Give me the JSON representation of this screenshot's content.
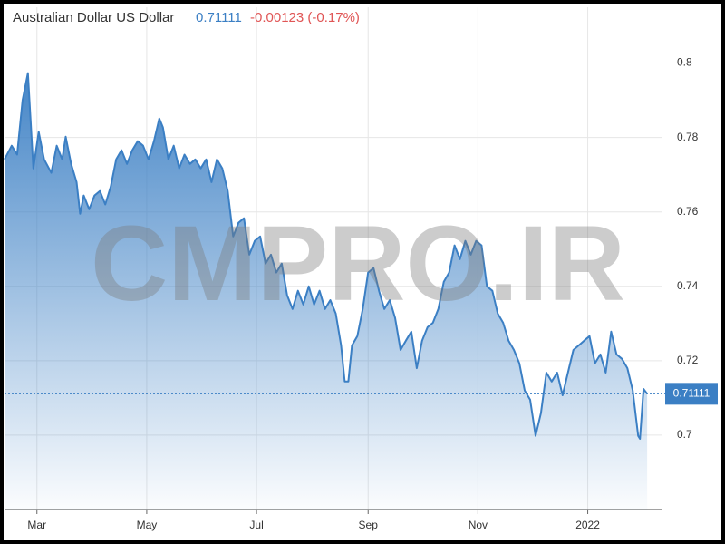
{
  "chart_data": {
    "type": "area",
    "title": "Australian Dollar US Dollar",
    "last_price": 0.71111,
    "change_label": "-0.00123 (-0.17%)",
    "watermark": "CMPRO.IR",
    "color": "#3b7fc4",
    "change_color": "#e05555",
    "grid": true,
    "xlim": [
      -18,
      347
    ],
    "ylim": [
      0.68,
      0.815
    ],
    "xticks": [
      {
        "value": 0,
        "label": "Mar"
      },
      {
        "value": 61,
        "label": "May"
      },
      {
        "value": 122,
        "label": "Jul"
      },
      {
        "value": 184,
        "label": "Sep"
      },
      {
        "value": 245,
        "label": "Nov"
      },
      {
        "value": 306,
        "label": "2022"
      }
    ],
    "yticks": [
      0.7,
      0.72,
      0.74,
      0.76,
      0.78,
      0.8
    ],
    "x": [
      -18,
      -14,
      -11,
      -8,
      -5,
      -2,
      1,
      4,
      8,
      11,
      14,
      16,
      19,
      22,
      24,
      26,
      29,
      32,
      35,
      38,
      41,
      44,
      47,
      50,
      53,
      56,
      59,
      62,
      65,
      68,
      70,
      73,
      76,
      79,
      82,
      85,
      88,
      91,
      94,
      97,
      100,
      103,
      106,
      109,
      112,
      115,
      118,
      121,
      124,
      127,
      130,
      133,
      136,
      139,
      142,
      145,
      148,
      151,
      154,
      157,
      160,
      163,
      166,
      169,
      171,
      173,
      175,
      178,
      181,
      184,
      187,
      190,
      193,
      196,
      199,
      202,
      205,
      208,
      211,
      214,
      217,
      220,
      223,
      226,
      229,
      232,
      235,
      238,
      241,
      244,
      247,
      250,
      253,
      256,
      259,
      262,
      265,
      268,
      271,
      274,
      277,
      280,
      283,
      286,
      289,
      292,
      295,
      298,
      301,
      304,
      307,
      310,
      313,
      316,
      319,
      322,
      325,
      328,
      331,
      334,
      335,
      337,
      339
    ],
    "values": [
      0.7741,
      0.7778,
      0.7754,
      0.79,
      0.7973,
      0.7717,
      0.7815,
      0.7741,
      0.7705,
      0.7778,
      0.7741,
      0.7802,
      0.7729,
      0.768,
      0.7595,
      0.7644,
      0.7607,
      0.7644,
      0.7656,
      0.762,
      0.7668,
      0.7741,
      0.7766,
      0.7729,
      0.7766,
      0.779,
      0.7778,
      0.7741,
      0.779,
      0.7851,
      0.7827,
      0.7741,
      0.7778,
      0.7717,
      0.7754,
      0.7729,
      0.7741,
      0.7717,
      0.7741,
      0.768,
      0.7741,
      0.7717,
      0.7656,
      0.7534,
      0.7571,
      0.7583,
      0.7485,
      0.7522,
      0.7534,
      0.7461,
      0.7485,
      0.7437,
      0.7461,
      0.7376,
      0.7339,
      0.7388,
      0.7351,
      0.74,
      0.7351,
      0.7388,
      0.7339,
      0.7363,
      0.7327,
      0.7241,
      0.7144,
      0.7144,
      0.7241,
      0.7266,
      0.7339,
      0.7437,
      0.7449,
      0.7388,
      0.7339,
      0.7363,
      0.7315,
      0.7229,
      0.7254,
      0.7278,
      0.718,
      0.7254,
      0.729,
      0.7302,
      0.7339,
      0.7412,
      0.7437,
      0.751,
      0.7473,
      0.7522,
      0.7485,
      0.7522,
      0.751,
      0.74,
      0.7388,
      0.7327,
      0.7302,
      0.7254,
      0.7229,
      0.7193,
      0.712,
      0.7095,
      0.6998,
      0.7059,
      0.7168,
      0.7144,
      0.7168,
      0.7107,
      0.7168,
      0.7229,
      0.7241,
      0.7254,
      0.7266,
      0.7193,
      0.7217,
      0.7168,
      0.7278,
      0.7217,
      0.7205,
      0.718,
      0.712,
      0.6998,
      0.699,
      0.7124,
      0.71111
    ]
  }
}
